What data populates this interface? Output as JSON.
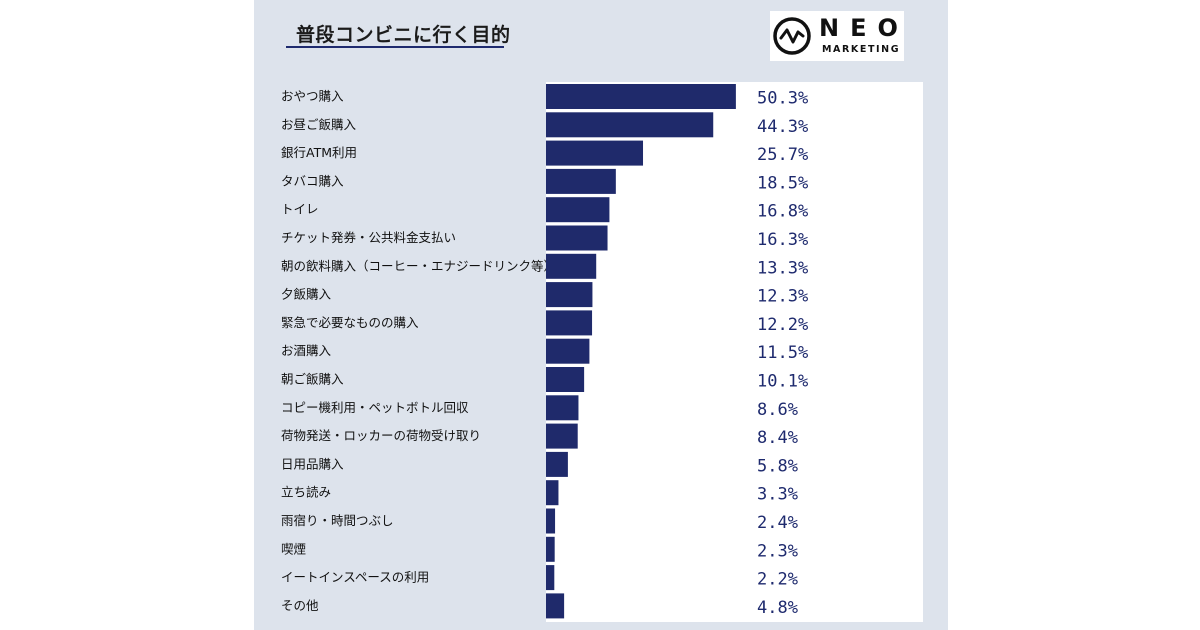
{
  "title": "普段コンビニに行く目的",
  "logo": {
    "name": "NEO",
    "sub": "MARKETING"
  },
  "colors": {
    "bar": "#1f2a6b",
    "panel": "#dde3ec",
    "value_text": "#1e2a6e"
  },
  "chart_data": {
    "type": "bar",
    "orientation": "horizontal",
    "title": "普段コンビニに行く目的",
    "categories": [
      "おやつ購入",
      "お昼ご飯購入",
      "銀行ATM利用",
      "タバコ購入",
      "トイレ",
      "チケット発券・公共料金支払い",
      "朝の飲料購入（コーヒー・エナジードリンク等）",
      "夕飯購入",
      "緊急で必要なものの購入",
      "お酒購入",
      "朝ご飯購入",
      "コピー機利用・ペットボトル回収",
      "荷物発送・ロッカーの荷物受け取り",
      "日用品購入",
      "立ち読み",
      "雨宿り・時間つぶし",
      "喫煙",
      "イートインスペースの利用",
      "その他"
    ],
    "values": [
      50.3,
      44.3,
      25.7,
      18.5,
      16.8,
      16.3,
      13.3,
      12.3,
      12.2,
      11.5,
      10.1,
      8.6,
      8.4,
      5.8,
      3.3,
      2.4,
      2.3,
      2.2,
      4.8
    ],
    "value_labels": [
      "50.3%",
      "44.3%",
      "25.7%",
      "18.5%",
      "16.8%",
      "16.3%",
      "13.3%",
      "12.3%",
      "12.2%",
      "11.5%",
      "10.1%",
      "8.6%",
      "8.4%",
      "5.8%",
      "3.3%",
      "2.4%",
      "2.3%",
      "2.2%",
      "4.8%"
    ],
    "unit": "%",
    "xlim": [
      0,
      100
    ],
    "grid": false,
    "legend": false
  }
}
